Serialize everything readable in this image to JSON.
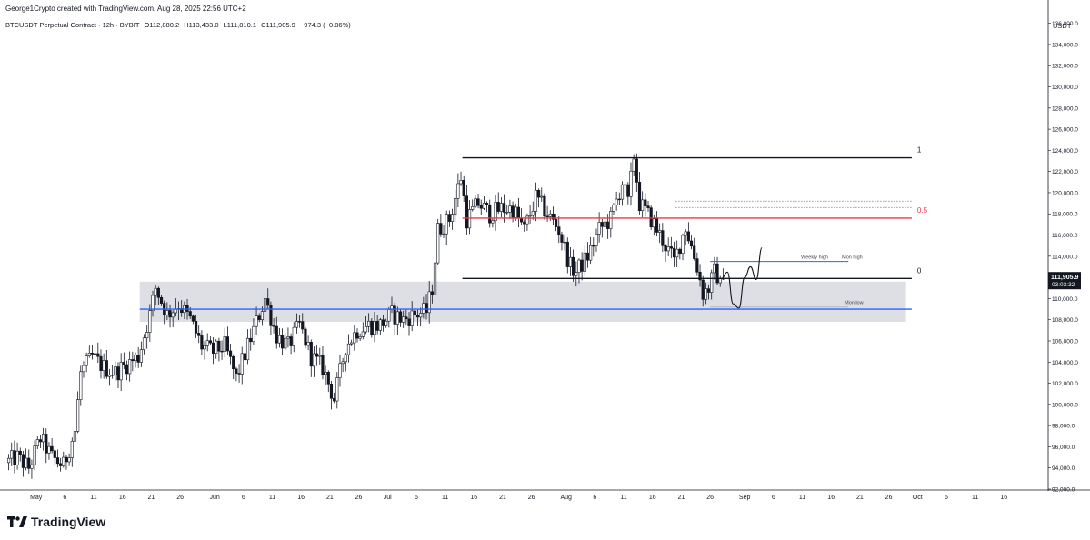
{
  "header": {
    "credit": "George1Crypto created with TradingView.com, Aug 28, 2025 22:56 UTC+2"
  },
  "symbol_bar": {
    "instrument": "BTCUSDT Perpetual Contract · 12h · BYBIT",
    "open": "O112,880.2",
    "high": "H113,433.0",
    "low": "L111,810.1",
    "close": "C111,905.9",
    "change": "−974.3 (−0.86%)"
  },
  "axis": {
    "currency": "USDT",
    "price_tag": "111,905.9",
    "countdown": "03:03:32"
  },
  "brand": {
    "name": "TradingView"
  },
  "colors": {
    "up": "#131722",
    "support_line": "#2962ff",
    "fib_mid": "#f23645",
    "zone": "#d1d4dc"
  },
  "chart_data": {
    "type": "candlestick",
    "timeframe": "12h",
    "ylim": [
      92000,
      137000
    ],
    "y_ticks": [
      92000,
      94000,
      96000,
      98000,
      100000,
      102000,
      104000,
      106000,
      108000,
      110000,
      112000,
      114000,
      116000,
      118000,
      120000,
      122000,
      124000,
      126000,
      128000,
      130000,
      132000,
      134000,
      136000
    ],
    "y_tick_labels": [
      "92,000.0",
      "94,000.0",
      "96,000.0",
      "98,000.0",
      "100,000.0",
      "102,000.0",
      "104,000.0",
      "106,000.0",
      "108,000.0",
      "110,000.0",
      "112,000.0",
      "114,000.0",
      "116,000.0",
      "118,000.0",
      "120,000.0",
      "122,000.0",
      "124,000.0",
      "126,000.0",
      "128,000.0",
      "130,000.0",
      "132,000.0",
      "134,000.0",
      "136,000.0"
    ],
    "x_ticks": [
      {
        "date": "2025-05-01",
        "label": "May"
      },
      {
        "date": "2025-05-06",
        "label": "6"
      },
      {
        "date": "2025-05-11",
        "label": "11"
      },
      {
        "date": "2025-05-16",
        "label": "16"
      },
      {
        "date": "2025-05-21",
        "label": "21"
      },
      {
        "date": "2025-05-26",
        "label": "26"
      },
      {
        "date": "2025-06-01",
        "label": "Jun"
      },
      {
        "date": "2025-06-06",
        "label": "6"
      },
      {
        "date": "2025-06-11",
        "label": "11"
      },
      {
        "date": "2025-06-16",
        "label": "16"
      },
      {
        "date": "2025-06-21",
        "label": "21"
      },
      {
        "date": "2025-06-26",
        "label": "26"
      },
      {
        "date": "2025-07-01",
        "label": "Jul"
      },
      {
        "date": "2025-07-06",
        "label": "6"
      },
      {
        "date": "2025-07-11",
        "label": "11"
      },
      {
        "date": "2025-07-16",
        "label": "16"
      },
      {
        "date": "2025-07-21",
        "label": "21"
      },
      {
        "date": "2025-07-26",
        "label": "26"
      },
      {
        "date": "2025-08-01",
        "label": "Aug"
      },
      {
        "date": "2025-08-06",
        "label": "6"
      },
      {
        "date": "2025-08-11",
        "label": "11"
      },
      {
        "date": "2025-08-16",
        "label": "16"
      },
      {
        "date": "2025-08-21",
        "label": "21"
      },
      {
        "date": "2025-08-26",
        "label": "26"
      },
      {
        "date": "2025-09-01",
        "label": "Sep"
      },
      {
        "date": "2025-09-06",
        "label": "6"
      },
      {
        "date": "2025-09-11",
        "label": "11"
      },
      {
        "date": "2025-09-16",
        "label": "16"
      },
      {
        "date": "2025-09-21",
        "label": "21"
      },
      {
        "date": "2025-09-26",
        "label": "26"
      },
      {
        "date": "2025-10-01",
        "label": "Oct"
      },
      {
        "date": "2025-10-06",
        "label": "6"
      },
      {
        "date": "2025-10-11",
        "label": "11"
      },
      {
        "date": "2025-10-16",
        "label": "16"
      }
    ],
    "x_range": [
      "2025-04-26",
      "2025-10-21"
    ],
    "price_path": [
      [
        "2025-04-26",
        94500
      ],
      [
        "2025-04-28",
        95000
      ],
      [
        "2025-04-30",
        94000
      ],
      [
        "2025-05-02",
        96800
      ],
      [
        "2025-05-04",
        95000
      ],
      [
        "2025-05-06",
        94200
      ],
      [
        "2025-05-08",
        97500
      ],
      [
        "2025-05-09",
        103000
      ],
      [
        "2025-05-11",
        104500
      ],
      [
        "2025-05-13",
        103500
      ],
      [
        "2025-05-15",
        103000
      ],
      [
        "2025-05-17",
        103800
      ],
      [
        "2025-05-19",
        104500
      ],
      [
        "2025-05-21",
        108500
      ],
      [
        "2025-05-22",
        111000
      ],
      [
        "2025-05-24",
        108500
      ],
      [
        "2025-05-26",
        109500
      ],
      [
        "2025-05-28",
        108000
      ],
      [
        "2025-05-30",
        105500
      ],
      [
        "2025-06-01",
        105000
      ],
      [
        "2025-06-03",
        105500
      ],
      [
        "2025-06-05",
        102500
      ],
      [
        "2025-06-07",
        105500
      ],
      [
        "2025-06-09",
        108500
      ],
      [
        "2025-06-10",
        110000
      ],
      [
        "2025-06-12",
        106500
      ],
      [
        "2025-06-14",
        105500
      ],
      [
        "2025-06-16",
        107500
      ],
      [
        "2025-06-18",
        104500
      ],
      [
        "2025-06-20",
        103500
      ],
      [
        "2025-06-22",
        100500
      ],
      [
        "2025-06-24",
        105500
      ],
      [
        "2025-06-26",
        107000
      ],
      [
        "2025-06-28",
        107500
      ],
      [
        "2025-06-30",
        107500
      ],
      [
        "2025-07-02",
        108500
      ],
      [
        "2025-07-04",
        108000
      ],
      [
        "2025-07-06",
        108500
      ],
      [
        "2025-07-08",
        108800
      ],
      [
        "2025-07-09",
        111000
      ],
      [
        "2025-07-10",
        116500
      ],
      [
        "2025-07-12",
        117500
      ],
      [
        "2025-07-14",
        121500
      ],
      [
        "2025-07-15",
        117500
      ],
      [
        "2025-07-17",
        119000
      ],
      [
        "2025-07-19",
        118000
      ],
      [
        "2025-07-21",
        118500
      ],
      [
        "2025-07-23",
        118500
      ],
      [
        "2025-07-25",
        116500
      ],
      [
        "2025-07-27",
        119500
      ],
      [
        "2025-07-29",
        118000
      ],
      [
        "2025-07-31",
        116500
      ],
      [
        "2025-08-02",
        113000
      ],
      [
        "2025-08-03",
        112500
      ],
      [
        "2025-08-05",
        114000
      ],
      [
        "2025-08-07",
        116500
      ],
      [
        "2025-08-09",
        117500
      ],
      [
        "2025-08-11",
        121000
      ],
      [
        "2025-08-12",
        119000
      ],
      [
        "2025-08-13",
        123500
      ],
      [
        "2025-08-14",
        119000
      ],
      [
        "2025-08-16",
        117500
      ],
      [
        "2025-08-18",
        115500
      ],
      [
        "2025-08-20",
        113500
      ],
      [
        "2025-08-22",
        116800
      ],
      [
        "2025-08-24",
        113000
      ],
      [
        "2025-08-25",
        110500
      ],
      [
        "2025-08-26",
        111000
      ],
      [
        "2025-08-27",
        112500
      ],
      [
        "2025-08-28",
        111906
      ]
    ],
    "projection_path": [
      [
        "2025-08-28",
        111906
      ],
      [
        "2025-08-29",
        112500
      ],
      [
        "2025-08-30",
        109500
      ],
      [
        "2025-08-31",
        109100
      ],
      [
        "2025-09-01",
        112000
      ],
      [
        "2025-09-02",
        113000
      ],
      [
        "2025-09-03",
        111800
      ],
      [
        "2025-09-04",
        114800
      ]
    ],
    "levels": [
      {
        "name": "fib-1",
        "label": "1",
        "price": 123300,
        "from": "2025-07-14",
        "to": "2025-09-30",
        "color": "#131722"
      },
      {
        "name": "fib-0.5",
        "label": "0.5",
        "price": 117600,
        "from": "2025-07-14",
        "to": "2025-09-30",
        "color": "#f23645"
      },
      {
        "name": "fib-0",
        "label": "0",
        "price": 111900,
        "from": "2025-07-14",
        "to": "2025-09-30",
        "color": "#131722"
      },
      {
        "name": "support",
        "label": "",
        "price": 109000,
        "from": "2025-05-19",
        "to": "2025-09-30",
        "color": "#2962ff"
      }
    ],
    "range_lines": [
      {
        "name": "weekly-high",
        "price": 113500,
        "from": "2025-08-26",
        "to": "2025-09-19",
        "color": "#2962ff",
        "labels": [
          "Weekly high",
          "Mon high"
        ]
      },
      {
        "name": "mon-low",
        "price": 109200,
        "from": "2025-08-26",
        "to": "2025-09-19",
        "color": "#b2b5be",
        "labels": [
          "Mon low"
        ]
      }
    ],
    "dotted_levels": [
      119200,
      118600
    ],
    "zone": {
      "top": 111600,
      "bottom": 107800,
      "from": "2025-05-19",
      "to": "2025-09-29"
    }
  }
}
